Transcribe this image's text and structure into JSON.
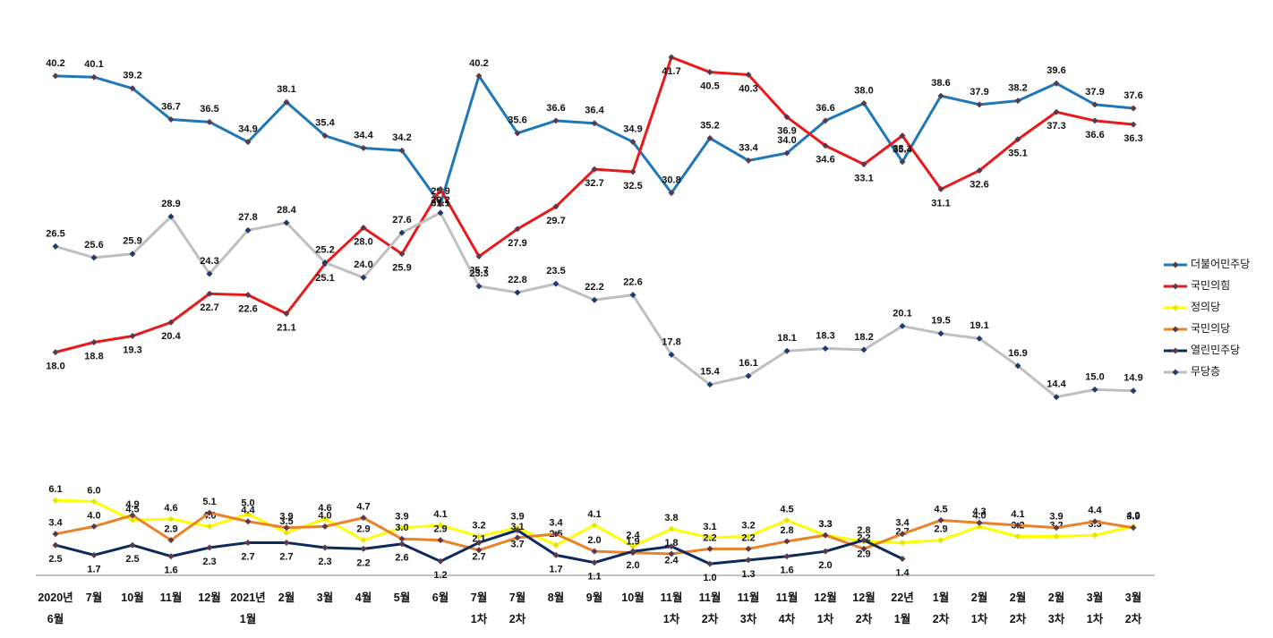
{
  "chart_data": {
    "type": "line",
    "categories": [
      "2020년\n6월",
      "7월",
      "10월",
      "11월",
      "12월",
      "2021년\n1월",
      "2월",
      "3월",
      "4월",
      "5월",
      "6월",
      "7월\n1차",
      "7월\n2차",
      "8월",
      "9월",
      "10월",
      "11월\n1차",
      "11월\n2차",
      "11월\n3차",
      "11월\n4차",
      "12월\n1차",
      "12월\n2차",
      "22년\n1월",
      "1월\n2차",
      "2월\n1차",
      "2월\n2차",
      "2월\n3차",
      "3월\n1차",
      "3월\n2차"
    ],
    "ylim": [
      0,
      44
    ],
    "legend": "right",
    "series": [
      {
        "name": "더불어민주당",
        "color": "#1f77b8",
        "values": [
          40.2,
          40.1,
          39.2,
          36.7,
          36.5,
          34.9,
          38.1,
          35.4,
          34.4,
          34.2,
          29.9,
          40.2,
          35.6,
          36.6,
          36.4,
          34.9,
          30.8,
          35.2,
          33.4,
          34.0,
          36.6,
          38.0,
          33.3,
          38.6,
          37.9,
          38.2,
          39.6,
          37.9,
          37.6
        ],
        "value_labels": [
          "40.2",
          "40.1",
          "39.2",
          "36.7",
          "36.5",
          "34.9",
          "38.1",
          "35.4",
          "34.4",
          "34.2",
          "29.9",
          "40.2",
          "35.6",
          "36.6",
          "36.4",
          "34.9",
          "30.8",
          "35.2",
          "33.4",
          "34.0",
          "36.6",
          "38.0",
          "33.3",
          "38.6",
          "37.9",
          "38.2",
          "39.6",
          "37.9",
          "37.6"
        ]
      },
      {
        "name": "국민의힘",
        "color": "#e8191b",
        "values": [
          18.0,
          18.8,
          19.3,
          20.4,
          22.7,
          22.6,
          21.1,
          25.1,
          28.0,
          25.9,
          31.1,
          25.7,
          27.9,
          29.7,
          32.7,
          32.5,
          41.7,
          40.5,
          40.3,
          36.9,
          34.6,
          33.1,
          35.4,
          31.1,
          32.6,
          35.1,
          37.3,
          36.6,
          36.3
        ],
        "value_labels": [
          "18.0",
          "18.8",
          "19.3",
          "20.4",
          "22.7",
          "22.6",
          "21.1",
          "25.1",
          "28.0",
          "25.9",
          "31.1",
          "25.7",
          "27.9",
          "29.7",
          "32.7",
          "32.5",
          "41.7",
          "40.5",
          "40.3",
          "36.9",
          "34.6",
          "33.1",
          "35.4",
          "31.1",
          "32.6",
          "35.1",
          "37.3",
          "36.6",
          "36.3"
        ]
      },
      {
        "name": "정의당",
        "color": "#ffff00",
        "values": [
          6.1,
          6.0,
          4.5,
          4.6,
          4.0,
          5.0,
          3.5,
          4.6,
          2.9,
          3.9,
          4.1,
          3.2,
          3.9,
          2.5,
          4.1,
          2.4,
          3.8,
          3.1,
          3.2,
          4.5,
          3.3,
          2.8,
          2.7,
          2.9,
          4.0,
          3.2,
          3.2,
          3.3,
          4.0
        ],
        "value_labels": [
          "6.1",
          "6.0",
          "4.5",
          "4.6",
          "4.0",
          "5.0",
          "3.5",
          "4.6",
          "2.9",
          "3.9",
          "4.1",
          "3.2",
          "3.9",
          "2.5",
          "4.1",
          "2.4",
          "3.8",
          "3.1",
          "3.2",
          "4.5",
          "3.3",
          "2.8",
          "2.7",
          "2.9",
          "4.0",
          "3.2",
          "3.2",
          "3.3",
          "4.0"
        ]
      },
      {
        "name": "국민의당",
        "color": "#e8832a",
        "values": [
          3.4,
          4.0,
          4.9,
          2.9,
          5.1,
          4.4,
          3.9,
          4.0,
          4.7,
          3.0,
          2.9,
          2.1,
          3.1,
          3.4,
          2.0,
          1.9,
          1.8,
          2.2,
          2.2,
          2.8,
          3.3,
          2.2,
          3.4,
          4.5,
          4.3,
          4.1,
          3.9,
          4.4,
          3.9
        ],
        "value_labels": [
          "3.4",
          "4.0",
          "4.9",
          "2.9",
          "5.1",
          "4.4",
          "3.9",
          "4.0",
          "4.7",
          "3.0",
          "2.9",
          "2.1",
          "3.1",
          "3.4",
          "2.0",
          "1.9",
          "1.8",
          "2.2",
          "2.2",
          "2.8",
          "3.3",
          "2.2",
          "3.4",
          "4.5",
          "4.3",
          "4.1",
          "3.9",
          "4.4",
          "3.9"
        ]
      },
      {
        "name": "열린민주당",
        "color": "#0d2a5c",
        "values": [
          2.5,
          1.7,
          2.5,
          1.6,
          2.3,
          2.7,
          2.7,
          2.3,
          2.2,
          2.6,
          1.2,
          2.7,
          3.7,
          1.7,
          1.1,
          2.0,
          2.4,
          1.0,
          1.3,
          1.6,
          2.0,
          2.9,
          1.4,
          null,
          null,
          null,
          null,
          null,
          null
        ],
        "value_labels": [
          "2.5",
          "1.7",
          "2.5",
          "1.6",
          "2.3",
          "2.7",
          "2.7",
          "2.3",
          "2.2",
          "2.6",
          "1.2",
          "2.7",
          "3.7",
          "1.7",
          "1.1",
          "2.0",
          "2.4",
          "1.0",
          "1.3",
          "1.6",
          "2.0",
          "2.9",
          "1.4",
          null,
          null,
          null,
          null,
          null,
          null
        ]
      },
      {
        "name": "무당층",
        "color": "#bfbfbf",
        "values": [
          26.5,
          25.6,
          25.9,
          28.9,
          24.3,
          27.8,
          28.4,
          25.2,
          24.0,
          27.6,
          29.2,
          23.3,
          22.8,
          23.5,
          22.2,
          22.6,
          17.8,
          15.4,
          16.1,
          18.1,
          18.3,
          18.2,
          20.1,
          19.5,
          19.1,
          16.9,
          14.4,
          15.0,
          14.9
        ],
        "value_labels": [
          "26.5",
          "25.6",
          "25.9",
          "28.9",
          "24.3",
          "27.8",
          "28.4",
          "25.2",
          "24.0",
          "27.6",
          "29.2",
          "23.3",
          "22.8",
          "23.5",
          "22.2",
          "22.6",
          "17.8",
          "15.4",
          "16.1",
          "18.1",
          "18.3",
          "18.2",
          "20.1",
          "19.5",
          "19.1",
          "16.9",
          "14.4",
          "15.0",
          "14.9"
        ]
      }
    ]
  }
}
